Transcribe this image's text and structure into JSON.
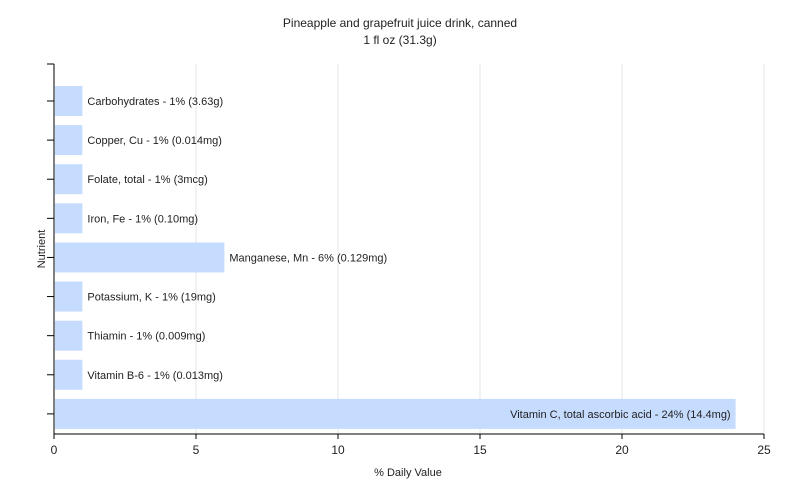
{
  "chart_data": {
    "type": "bar",
    "orientation": "horizontal",
    "title": "Pineapple and grapefruit juice drink, canned",
    "subtitle": "1 fl oz (31.3g)",
    "xlabel": "% Daily Value",
    "ylabel": "Nutrient",
    "xlim": [
      0,
      25
    ],
    "xticks": [
      0,
      5,
      10,
      15,
      20,
      25
    ],
    "grid": true,
    "bar_color": "#c6dcff",
    "categories": [
      "Carbohydrates",
      "Copper, Cu",
      "Folate, total",
      "Iron, Fe",
      "Manganese, Mn",
      "Potassium, K",
      "Thiamin",
      "Vitamin B-6",
      "Vitamin C, total ascorbic acid"
    ],
    "values": [
      1,
      1,
      1,
      1,
      6,
      1,
      1,
      1,
      24
    ],
    "labels": [
      "Carbohydrates - 1% (3.63g)",
      "Copper, Cu - 1% (0.014mg)",
      "Folate, total - 1% (3mcg)",
      "Iron, Fe - 1% (0.10mg)",
      "Manganese, Mn - 6% (0.129mg)",
      "Potassium, K - 1% (19mg)",
      "Thiamin - 1% (0.009mg)",
      "Vitamin B-6 - 1% (0.013mg)",
      "Vitamin C, total ascorbic acid - 24% (14.4mg)"
    ]
  }
}
